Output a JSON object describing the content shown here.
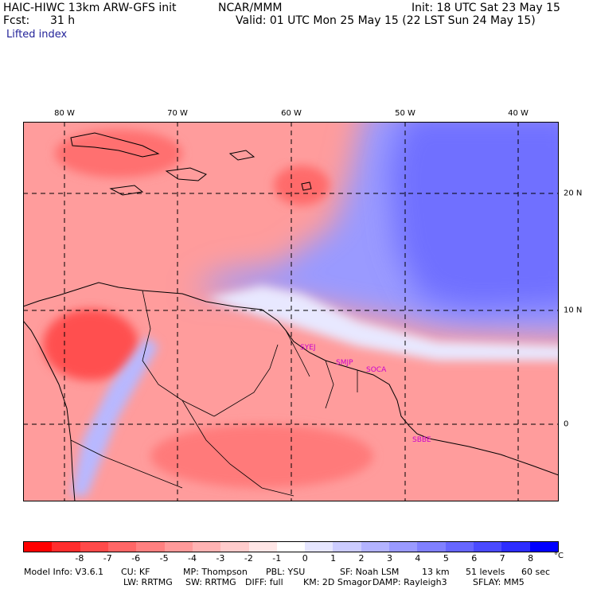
{
  "header": {
    "model": "HAIC-HIWC 13km ARW-GFS init",
    "org": "NCAR/MMM",
    "init": "Init: 18 UTC Sat 23 May 15",
    "fcst_label": "Fcst:",
    "fcst_value": "31 h",
    "valid": "Valid: 01 UTC Mon 25 May 15 (22 LST Sun 24 May 15)",
    "field": "Lifted index"
  },
  "map": {
    "lon_labels": [
      "80 W",
      "70 W",
      "60 W",
      "50 W",
      "40 W"
    ],
    "lat_labels": [
      "20 N",
      "10 N",
      "0"
    ],
    "stations": [
      "SYEJ",
      "SMJP",
      "SOCA",
      "SBBE"
    ]
  },
  "colorbar": {
    "colors": [
      "#ff0000",
      "#ff2d2d",
      "#ff4a4a",
      "#ff6666",
      "#ff8080",
      "#ff9a9a",
      "#ffb3b3",
      "#ffcccc",
      "#ffe6e6",
      "#ffffff",
      "#e6e6ff",
      "#ccccff",
      "#b3b3ff",
      "#9a9aff",
      "#8080ff",
      "#6666ff",
      "#4a4aff",
      "#2d2dff",
      "#0000ff"
    ],
    "labels": [
      "-8",
      "-7",
      "-6",
      "-5",
      "-4",
      "-3",
      "-2",
      "-1",
      "0",
      "1",
      "2",
      "3",
      "4",
      "5",
      "6",
      "7",
      "8"
    ],
    "unit": "°C"
  },
  "model_info": {
    "line1": [
      "Model Info: V3.6.1",
      "CU: KF",
      "MP: Thompson",
      "PBL: YSU",
      "SF: Noah LSM",
      "13 km",
      "51 levels",
      "60 sec"
    ],
    "line2": [
      "LW: RRTMG",
      "SW: RRTMG",
      "DIFF: full",
      "KM: 2D Smagor",
      "DAMP: Rayleigh3",
      "SFLAY: MM5"
    ]
  }
}
